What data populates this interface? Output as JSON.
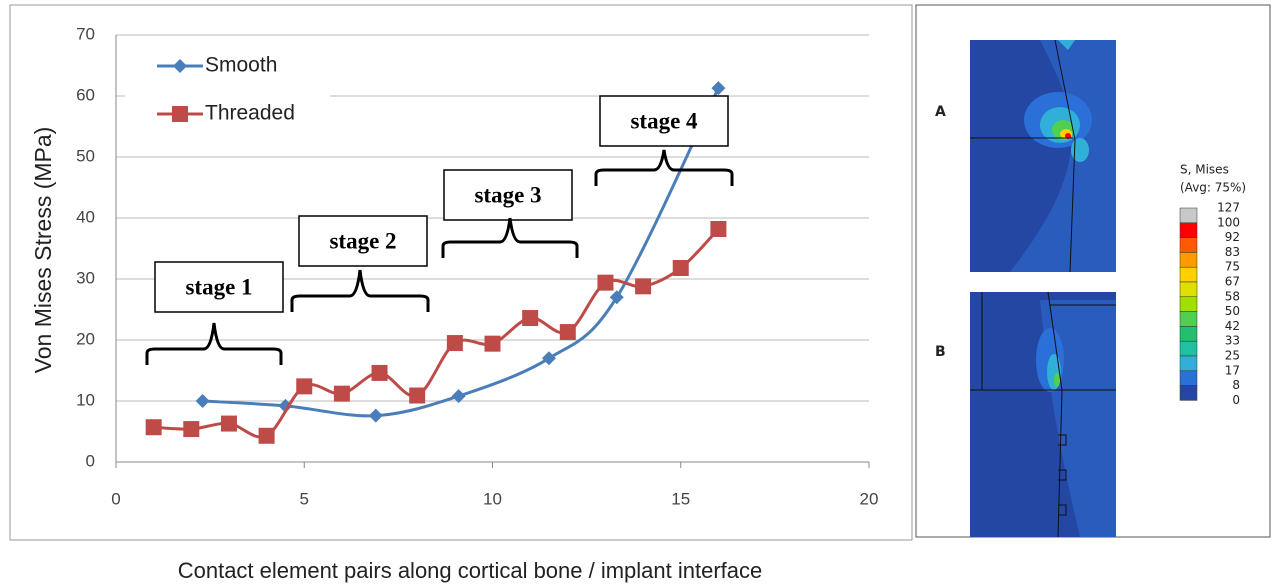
{
  "chart_data": {
    "type": "line",
    "xlabel": "Contact element pairs along cortical bone / implant interface",
    "ylabel": "Von Mises Stress (MPa)",
    "xlim": [
      0,
      20
    ],
    "xticks": [
      0,
      5,
      10,
      15,
      20
    ],
    "ylim": [
      0,
      70
    ],
    "yticks": [
      0,
      10,
      20,
      30,
      40,
      50,
      60,
      70
    ],
    "grid": true,
    "smooth": true,
    "legend": "upper left",
    "series": [
      {
        "name": "Smooth",
        "color": "#4a7ebb",
        "marker": "diamond",
        "x": [
          2.3,
          4.5,
          6.9,
          9.1,
          11.5,
          13.3,
          16
        ],
        "values": [
          10,
          9.2,
          7.6,
          10.8,
          17,
          27,
          61.3
        ]
      },
      {
        "name": "Threaded",
        "color": "#be4b48",
        "marker": "square",
        "x": [
          1,
          2,
          3,
          4,
          5,
          6,
          7,
          8,
          9,
          10,
          11,
          12,
          13,
          14,
          15,
          16
        ],
        "values": [
          5.7,
          5.4,
          6.3,
          4.3,
          12.4,
          11.2,
          14.6,
          10.9,
          19.5,
          19.4,
          23.6,
          21.3,
          29.4,
          28.8,
          31.8,
          38.2
        ]
      }
    ],
    "annotations": [
      "stage 1",
      "stage 2",
      "stage 3",
      "stage 4"
    ]
  },
  "figure": {
    "panels": [
      "A",
      "B"
    ],
    "legend_title": "S, Mises",
    "legend_subtitle": "(Avg: 75%)",
    "legend_values": [
      "127",
      "100",
      "92",
      "83",
      "75",
      "67",
      "58",
      "50",
      "42",
      "33",
      "25",
      "17",
      "8",
      "0"
    ],
    "legend_colors": [
      "#c8c8c8",
      "#ff0000",
      "#ff5a00",
      "#ff9a00",
      "#ffd000",
      "#e0e000",
      "#a0e000",
      "#50d050",
      "#20c070",
      "#20c0a0",
      "#30b0d8",
      "#2a70d8",
      "#2447a3"
    ]
  }
}
